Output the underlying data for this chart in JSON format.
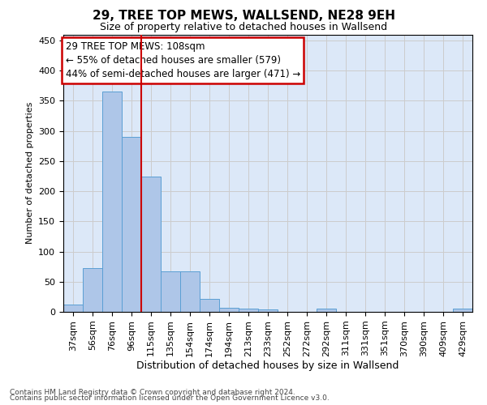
{
  "title": "29, TREE TOP MEWS, WALLSEND, NE28 9EH",
  "subtitle": "Size of property relative to detached houses in Wallsend",
  "xlabel": "Distribution of detached houses by size in Wallsend",
  "ylabel": "Number of detached properties",
  "categories": [
    "37sqm",
    "56sqm",
    "76sqm",
    "96sqm",
    "115sqm",
    "135sqm",
    "154sqm",
    "174sqm",
    "194sqm",
    "213sqm",
    "233sqm",
    "252sqm",
    "272sqm",
    "292sqm",
    "311sqm",
    "331sqm",
    "351sqm",
    "370sqm",
    "390sqm",
    "409sqm",
    "429sqm"
  ],
  "values": [
    12,
    72,
    365,
    290,
    224,
    67,
    67,
    21,
    7,
    6,
    4,
    0,
    0,
    5,
    0,
    0,
    0,
    0,
    0,
    0,
    5
  ],
  "bar_color": "#aec6e8",
  "bar_edge_color": "#5a9fd4",
  "property_line_bin": 3.5,
  "annotation_text": "29 TREE TOP MEWS: 108sqm\n← 55% of detached houses are smaller (579)\n44% of semi-detached houses are larger (471) →",
  "annotation_box_color": "#ffffff",
  "annotation_box_edge": "#cc0000",
  "vline_color": "#cc0000",
  "grid_color": "#cccccc",
  "background_color": "#dce8f8",
  "footer_line1": "Contains HM Land Registry data © Crown copyright and database right 2024.",
  "footer_line2": "Contains public sector information licensed under the Open Government Licence v3.0.",
  "ylim": [
    0,
    460
  ],
  "yticks": [
    0,
    50,
    100,
    150,
    200,
    250,
    300,
    350,
    400,
    450
  ],
  "title_fontsize": 11,
  "subtitle_fontsize": 9,
  "ylabel_fontsize": 8,
  "xlabel_fontsize": 9,
  "annotation_fontsize": 8.5,
  "tick_fontsize": 8
}
